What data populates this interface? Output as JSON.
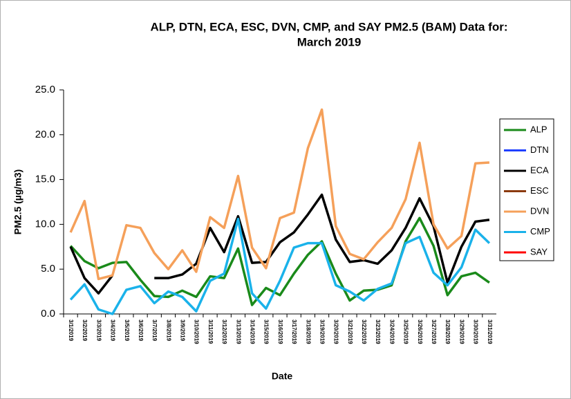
{
  "chart_data": {
    "type": "line",
    "title": [
      "ALP, DTN, ECA, ESC, DVN, CMP, and SAY PM2.5 (BAM)  Data for:",
      "March 2019"
    ],
    "x_label": "Date",
    "y_label": "PM2.5 (µg/m3)",
    "categories": [
      "3/1/2019",
      "3/2/2019",
      "3/3/2019",
      "3/4/2019",
      "3/5/2019",
      "3/6/2019",
      "3/7/2019",
      "3/8/2019",
      "3/9/2019",
      "3/10/2019",
      "3/11/2019",
      "3/12/2019",
      "3/13/2019",
      "3/14/2019",
      "3/15/2019",
      "3/16/2019",
      "3/17/2019",
      "3/18/2019",
      "3/19/2019",
      "3/20/2019",
      "3/21/2019",
      "3/22/2019",
      "3/23/2019",
      "3/24/2019",
      "3/25/2019",
      "3/26/2019",
      "3/27/2019",
      "3/28/2019",
      "3/29/2019",
      "3/30/2019",
      "3/31/2019"
    ],
    "series": [
      {
        "name": "ALP",
        "color": "#1a8a1a",
        "values": [
          7.6,
          5.9,
          5.1,
          5.7,
          5.8,
          3.8,
          2.0,
          1.9,
          2.6,
          1.9,
          4.2,
          4.0,
          7.3,
          1.0,
          2.9,
          2.1,
          4.5,
          6.6,
          8.1,
          4.5,
          1.5,
          2.6,
          2.7,
          3.2,
          8.1,
          10.7,
          7.6,
          2.1,
          4.2,
          4.6,
          3.5
        ]
      },
      {
        "name": "DTN",
        "color": "#1f3fff",
        "values": [
          null,
          null,
          null,
          null,
          null,
          null,
          null,
          null,
          null,
          null,
          null,
          null,
          null,
          null,
          null,
          null,
          null,
          null,
          null,
          null,
          null,
          null,
          null,
          null,
          null,
          null,
          null,
          null,
          null,
          null,
          null
        ]
      },
      {
        "name": "ECA",
        "color": "#000000",
        "values": [
          7.5,
          4.0,
          2.3,
          4.3,
          null,
          null,
          4.0,
          4.0,
          4.4,
          5.6,
          9.6,
          6.9,
          10.9,
          5.7,
          5.8,
          8.0,
          9.1,
          11.1,
          13.3,
          8.3,
          5.8,
          6.0,
          5.6,
          7.1,
          9.6,
          12.9,
          9.8,
          3.5,
          7.5,
          10.3,
          10.5
        ]
      },
      {
        "name": "ESC",
        "color": "#8b3a0f",
        "values": [
          null,
          null,
          null,
          null,
          null,
          null,
          null,
          null,
          null,
          null,
          null,
          null,
          null,
          null,
          null,
          null,
          null,
          null,
          null,
          null,
          null,
          null,
          null,
          null,
          null,
          null,
          null,
          null,
          null,
          null,
          null
        ]
      },
      {
        "name": "DVN",
        "color": "#f5a05a",
        "values": [
          9.1,
          12.6,
          3.9,
          4.3,
          9.9,
          9.6,
          6.8,
          5.0,
          7.1,
          4.7,
          10.8,
          9.6,
          15.4,
          7.4,
          5.1,
          10.7,
          11.3,
          18.5,
          22.8,
          9.8,
          6.7,
          6.1,
          8.0,
          9.6,
          12.8,
          19.1,
          10.0,
          7.3,
          8.7,
          16.8,
          16.9
        ]
      },
      {
        "name": "CMP",
        "color": "#1ab2ea",
        "values": [
          1.6,
          3.3,
          0.5,
          0.0,
          2.7,
          3.1,
          1.2,
          2.5,
          1.9,
          0.3,
          3.7,
          4.5,
          10.6,
          2.3,
          0.6,
          3.7,
          7.4,
          7.9,
          7.9,
          3.2,
          2.5,
          1.5,
          2.8,
          3.4,
          7.9,
          8.6,
          4.6,
          3.2,
          5.2,
          9.4,
          7.9
        ]
      },
      {
        "name": "SAY",
        "color": "#ff0000",
        "values": [
          null,
          null,
          null,
          null,
          null,
          null,
          null,
          null,
          null,
          null,
          null,
          null,
          null,
          null,
          null,
          null,
          null,
          null,
          null,
          null,
          null,
          null,
          null,
          null,
          null,
          null,
          null,
          null,
          null,
          null,
          null
        ]
      }
    ],
    "ylim": [
      0,
      25
    ],
    "yticks": [
      {
        "value": 0,
        "label": "0.0"
      },
      {
        "value": 5,
        "label": "5.0"
      },
      {
        "value": 10,
        "label": "10.0"
      },
      {
        "value": 15,
        "label": "15.0"
      },
      {
        "value": 20,
        "label": "20.0"
      },
      {
        "value": 25,
        "label": "25.0"
      }
    ],
    "legend": "right",
    "grid": false
  }
}
